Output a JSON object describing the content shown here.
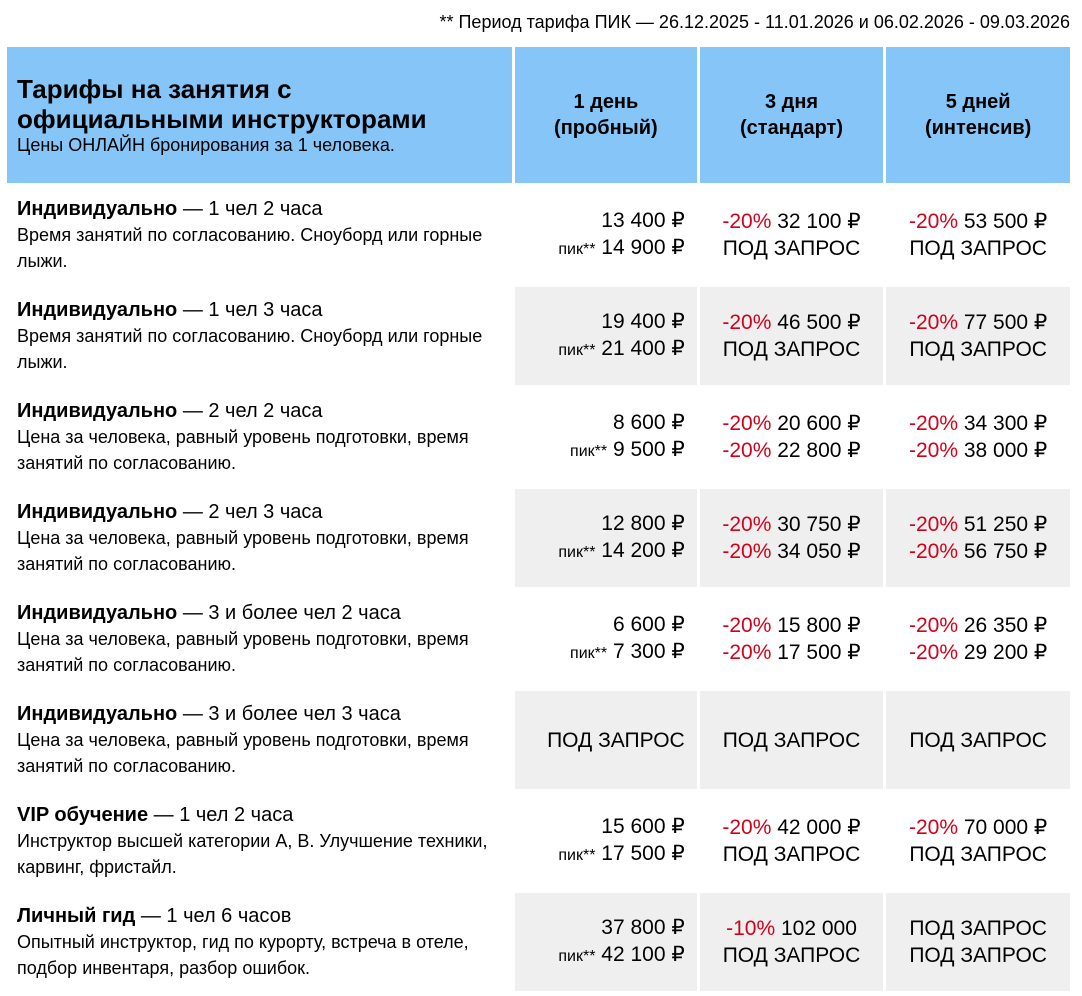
{
  "note": "** Период тарифа ПИК — 26.12.2025 - 11.01.2026 и 06.02.2026 - 09.03.2026",
  "header": {
    "title": "Тарифы на занятия с официальными инструкторами",
    "subtitle": "Цены ОНЛАЙН бронирования за 1 человека.",
    "cols": [
      {
        "l1": "1 день",
        "l2": "(пробный)"
      },
      {
        "l1": "3 дня",
        "l2": "(стандарт)"
      },
      {
        "l1": "5 дней",
        "l2": "(интенсив)"
      }
    ]
  },
  "colors": {
    "header": "#86c5f8",
    "alt_row": "#efefef",
    "discount": "#d0021b"
  },
  "peak_label": "пик**",
  "rows": [
    {
      "name": "Индивидуально",
      "detail": " — 1 чел 2 часа",
      "desc": "Время занятий по согласованию. Сноуборд или горные лыжи.",
      "c1": [
        "13 400 ₽",
        "14 900 ₽"
      ],
      "c2": [
        {
          "d": "-20%",
          "v": " 32 100 ₽"
        },
        {
          "d": "",
          "v": "ПОД ЗАПРОС"
        }
      ],
      "c3": [
        {
          "d": "-20%",
          "v": " 53 500 ₽"
        },
        {
          "d": "",
          "v": "ПОД ЗАПРОС"
        }
      ]
    },
    {
      "name": "Индивидуально",
      "detail": " — 1 чел 3 часа",
      "desc": "Время занятий по согласованию. Сноуборд или горные лыжи.",
      "c1": [
        "19 400 ₽",
        "21 400 ₽"
      ],
      "c2": [
        {
          "d": "-20%",
          "v": " 46 500 ₽"
        },
        {
          "d": "",
          "v": "ПОД ЗАПРОС"
        }
      ],
      "c3": [
        {
          "d": "-20%",
          "v": " 77 500 ₽"
        },
        {
          "d": "",
          "v": "ПОД ЗАПРОС"
        }
      ]
    },
    {
      "name": "Индивидуально",
      "detail": " — 2 чел 2 часа",
      "desc": "Цена за человека, равный уровень подготовки, время занятий по согласованию.",
      "c1": [
        "8 600 ₽",
        "9 500 ₽"
      ],
      "c2": [
        {
          "d": "-20%",
          "v": " 20 600 ₽"
        },
        {
          "d": "-20%",
          "v": " 22 800 ₽"
        }
      ],
      "c3": [
        {
          "d": "-20%",
          "v": " 34 300 ₽"
        },
        {
          "d": "-20%",
          "v": " 38 000 ₽"
        }
      ]
    },
    {
      "name": "Индивидуально",
      "detail": " — 2 чел 3 часа",
      "desc": "Цена за человека, равный уровень подготовки, время занятий по согласованию.",
      "c1": [
        "12 800 ₽",
        "14 200 ₽"
      ],
      "c2": [
        {
          "d": "-20%",
          "v": " 30 750 ₽"
        },
        {
          "d": "-20%",
          "v": " 34 050 ₽"
        }
      ],
      "c3": [
        {
          "d": "-20%",
          "v": " 51 250 ₽"
        },
        {
          "d": "-20%",
          "v": " 56 750 ₽"
        }
      ]
    },
    {
      "name": "Индивидуально",
      "detail": " — 3 и более чел 2 часа",
      "desc": "Цена за человека, равный уровень подготовки, время занятий по согласованию.",
      "c1": [
        "6 600 ₽",
        "7 300 ₽"
      ],
      "c2": [
        {
          "d": "-20%",
          "v": " 15 800 ₽"
        },
        {
          "d": "-20%",
          "v": " 17 500 ₽"
        }
      ],
      "c3": [
        {
          "d": "-20%",
          "v": " 26 350 ₽"
        },
        {
          "d": "-20%",
          "v": " 29 200 ₽"
        }
      ]
    },
    {
      "name": "Индивидуально",
      "detail": " — 3 и более чел 3 часа",
      "desc": "Цена за человека, равный уровень подготовки, время занятий по согласованию.",
      "single": "ПОД ЗАПРОС"
    },
    {
      "name": "VIP обучение",
      "detail": " — 1 чел 2 часа",
      "desc": "Инструктор высшей категории А, В. Улучшение техники, карвинг, фристайл.",
      "c1": [
        "15 600 ₽",
        "17 500 ₽"
      ],
      "c2": [
        {
          "d": "-20%",
          "v": " 42 000 ₽"
        },
        {
          "d": "",
          "v": "ПОД ЗАПРОС"
        }
      ],
      "c3": [
        {
          "d": "-20%",
          "v": " 70 000 ₽"
        },
        {
          "d": "",
          "v": "ПОД ЗАПРОС"
        }
      ]
    },
    {
      "name": "Личный гид",
      "detail": " — 1 чел 6 часов",
      "desc": "Опытный инструктор, гид по курорту, встреча в отеле, подбор инвентаря, разбор ошибок.",
      "c1": [
        "37 800 ₽",
        "42 100 ₽"
      ],
      "c2": [
        {
          "d": "-10%",
          "v": " 102 000"
        },
        {
          "d": "",
          "v": "ПОД ЗАПРОС"
        }
      ],
      "c3": [
        {
          "d": "",
          "v": "ПОД ЗАПРОС"
        },
        {
          "d": "",
          "v": "ПОД ЗАПРОС"
        }
      ]
    }
  ]
}
